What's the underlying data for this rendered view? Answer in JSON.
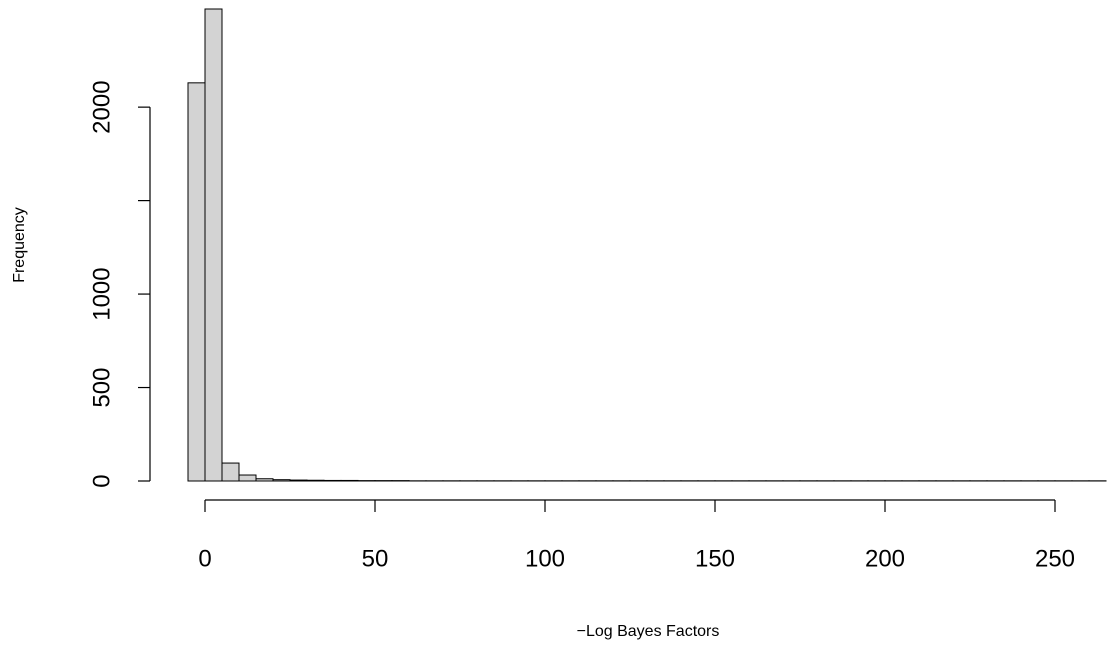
{
  "chart_data": {
    "type": "histogram",
    "x_label": "−Log Bayes Factors",
    "y_label": "Frequency",
    "bins": [
      -5,
      0,
      5,
      10,
      15,
      20,
      25,
      30,
      35,
      40,
      45,
      50,
      55,
      60,
      65,
      70,
      75,
      80,
      85,
      90,
      95,
      100,
      105,
      110,
      115,
      120,
      125,
      130,
      135,
      140,
      145,
      150,
      155,
      160,
      165,
      170,
      175,
      180,
      185,
      190,
      195,
      200,
      205,
      210,
      215,
      220,
      225,
      230,
      235,
      240,
      245,
      250,
      255,
      260,
      265
    ],
    "values": [
      2130,
      2525,
      96,
      32,
      12,
      7,
      5,
      4,
      3,
      3,
      2,
      2,
      2,
      1,
      1,
      1,
      1,
      1,
      1,
      1,
      1,
      1,
      1,
      1,
      1,
      1,
      1,
      1,
      1,
      1,
      1,
      1,
      1,
      1,
      1,
      1,
      1,
      1,
      1,
      1,
      1,
      1,
      1,
      1,
      1,
      1,
      1,
      1,
      1,
      1,
      1,
      1,
      1,
      1
    ],
    "color": "#d3d3d3",
    "xlim": [
      -5,
      265
    ],
    "ylim": [
      0,
      2525
    ],
    "xticks": [
      0,
      50,
      100,
      150,
      200,
      250
    ],
    "yticks": [
      0,
      500,
      1000,
      {
        "value": 1500,
        "label": null
      },
      2000
    ]
  }
}
